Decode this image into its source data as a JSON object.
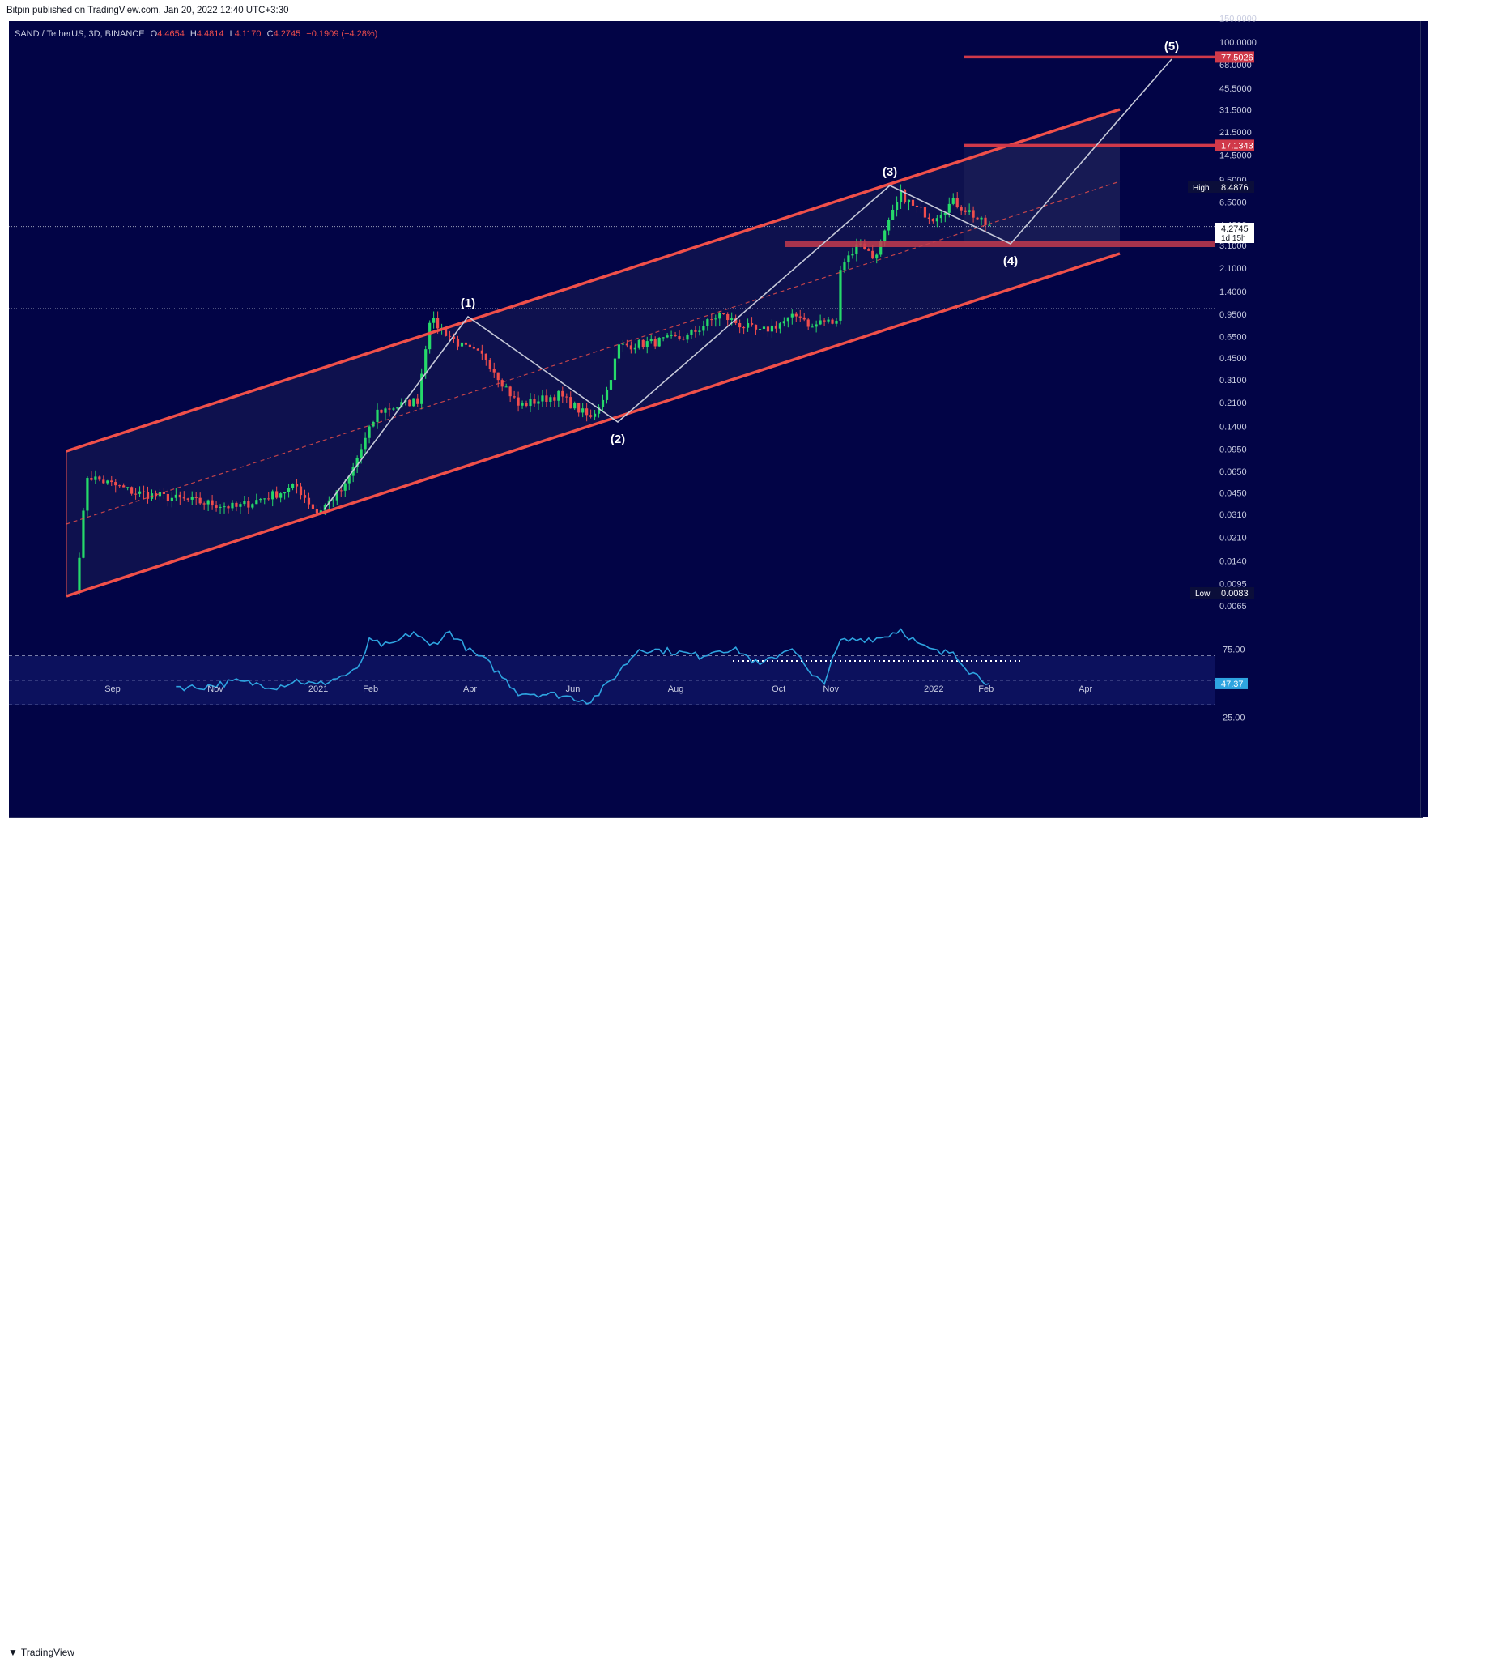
{
  "header": {
    "published": "Bitpin published on TradingView.com, Jan 20, 2022 12:40 UTC+3:30"
  },
  "legend": {
    "symbol": "SAND / TetherUS, 3D, BINANCE",
    "o_label": "O",
    "o_value": "4.4654",
    "h_label": "H",
    "h_value": "4.4814",
    "l_label": "L",
    "l_value": "4.1170",
    "c_label": "C",
    "c_value": "4.2745",
    "change": "−0.1909 (−4.28%)"
  },
  "footer": {
    "brand": "TradingView"
  },
  "colors": {
    "background": "#020446",
    "up": "#26d96a",
    "down": "#ef4d4d",
    "channel": "#f0504a",
    "wave": "#c5c8d8",
    "rsi": "#2ea4e0",
    "level": "#d0394a"
  },
  "chart_data": {
    "type": "candlestick",
    "x_axis_labels": [
      "Sep",
      "Nov",
      "2021",
      "Feb",
      "Apr",
      "Jun",
      "Aug",
      "Oct",
      "Nov",
      "2022",
      "Feb",
      "Apr"
    ],
    "price_axis_labels": [
      "150.0000",
      "100.0000",
      "68.0000",
      "45.5000",
      "31.5000",
      "21.5000",
      "14.5000",
      "9.5000",
      "6.5000",
      "4.4000",
      "3.1000",
      "2.1000",
      "1.4000",
      "0.9500",
      "0.6500",
      "0.4500",
      "0.3100",
      "0.2100",
      "0.1400",
      "0.0950",
      "0.0650",
      "0.0450",
      "0.0310",
      "0.0210",
      "0.0140",
      "0.0095",
      "0.0065"
    ],
    "price_scale": "log",
    "high": {
      "label": "High",
      "value": "8.4876"
    },
    "low": {
      "label": "Low",
      "value": "0.0083"
    },
    "last_price": {
      "value": "4.2745",
      "countdown": "1d 15h"
    },
    "levels": [
      {
        "value": "77.5026",
        "price": 77.5
      },
      {
        "value": "17.1343",
        "price": 17.13
      },
      {
        "price": 3.3
      }
    ],
    "waves": [
      {
        "label": "(1)",
        "price": 0.88
      },
      {
        "label": "(2)",
        "price": 0.15
      },
      {
        "label": "(3)",
        "price": 8.49
      },
      {
        "label": "(4)",
        "price": 3.2
      },
      {
        "label": "(5)",
        "price": 77.5
      }
    ],
    "rsi": {
      "axis_labels": [
        "75.00",
        "25.00"
      ],
      "last_value": "47.37",
      "upper": 70,
      "mid": 50,
      "lower": 30
    }
  }
}
